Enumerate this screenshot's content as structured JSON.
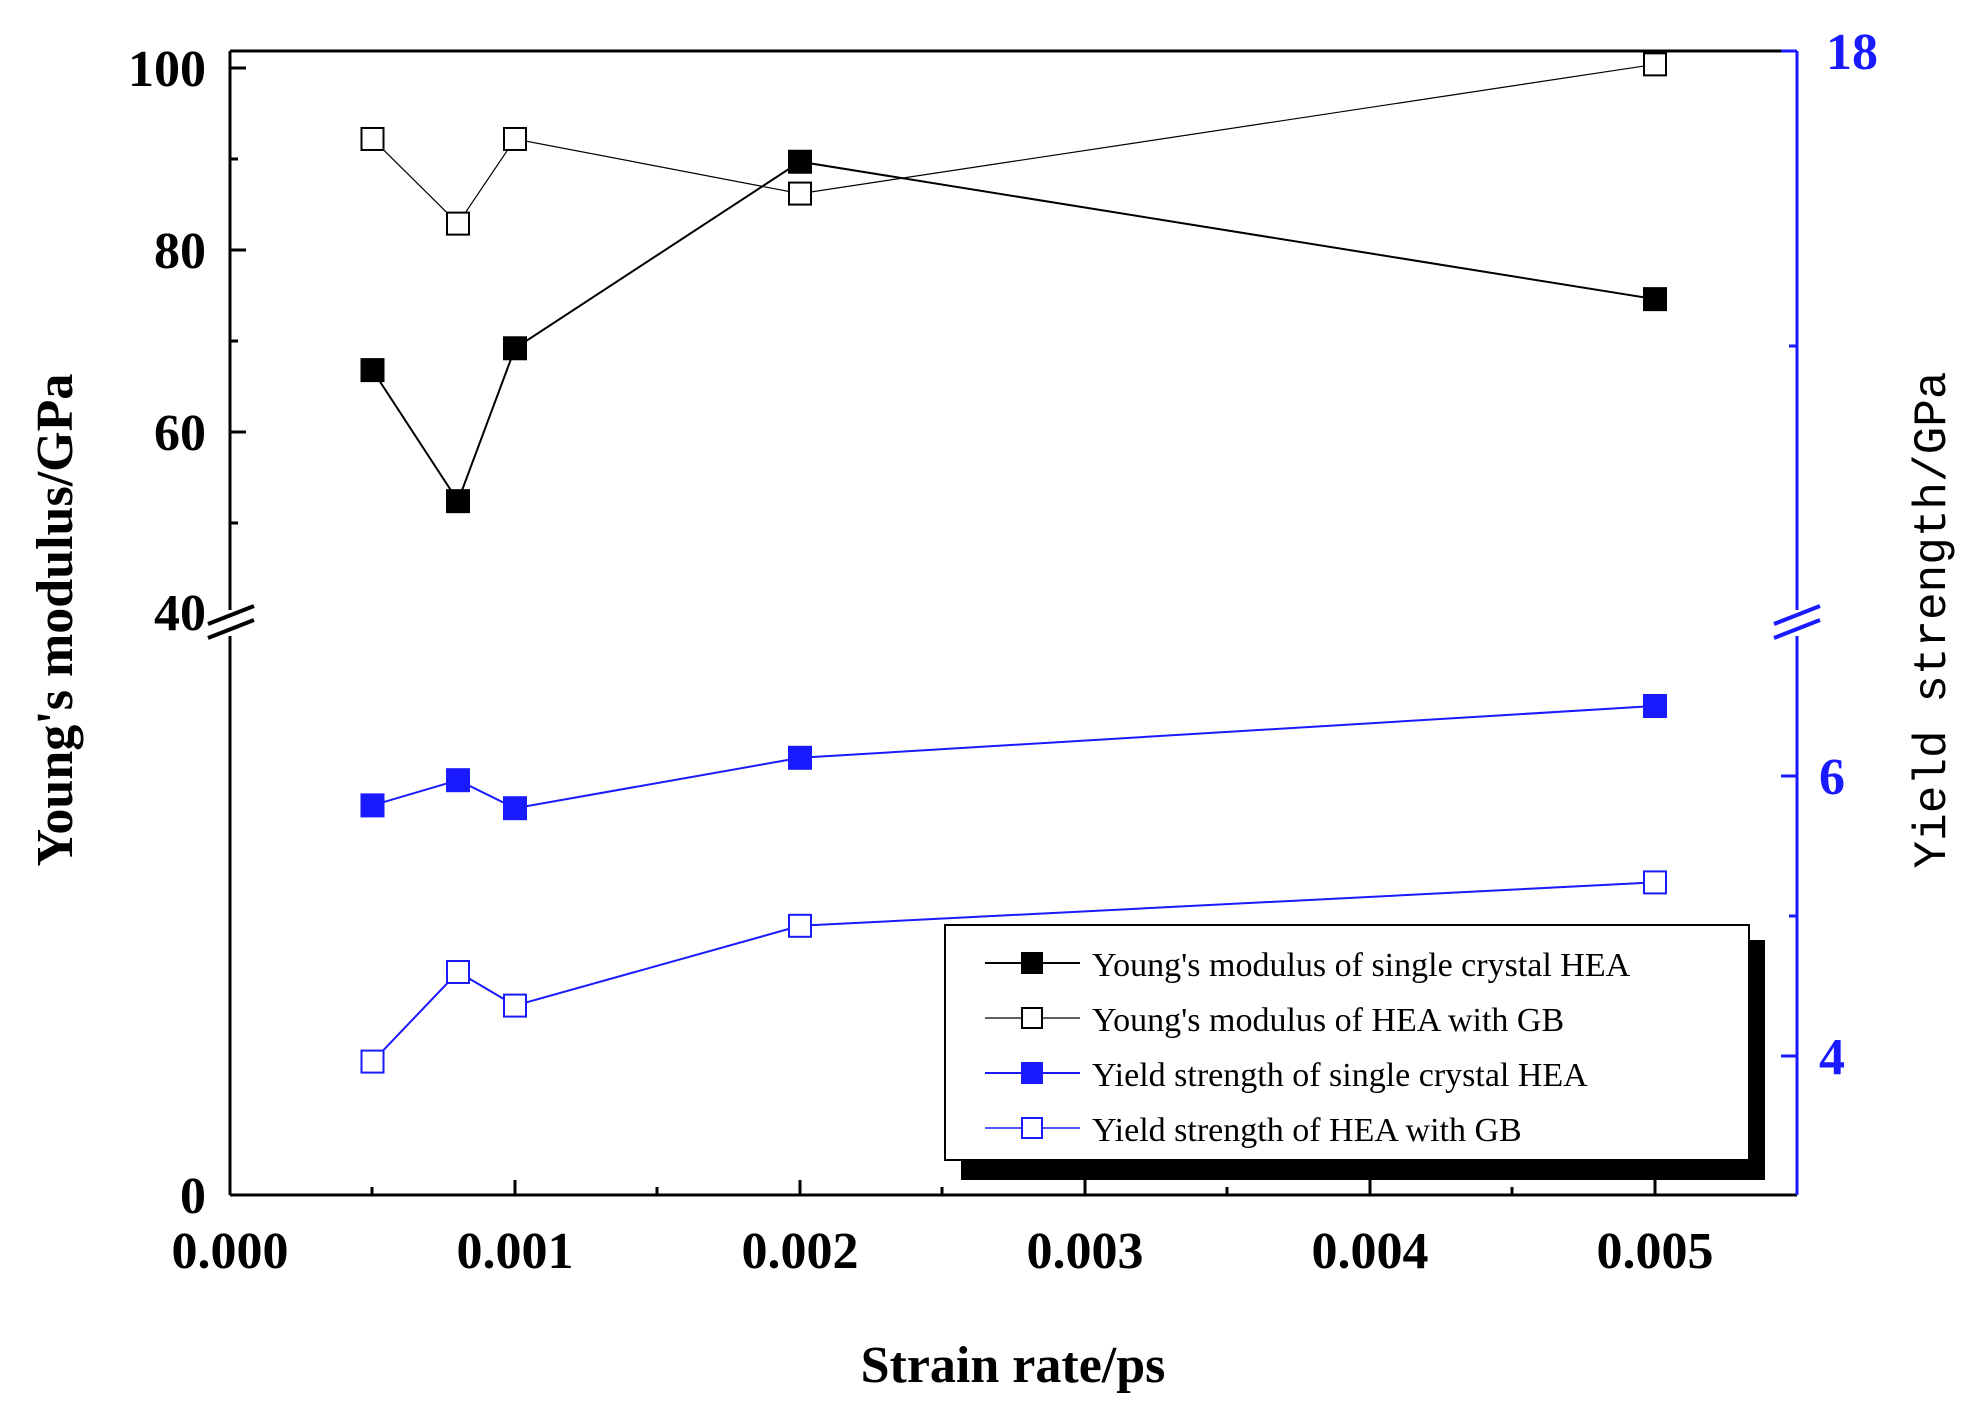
{
  "chart_data": {
    "type": "line",
    "title": "",
    "xlabel": "Strain rate/ps",
    "ylabel": "Young's modulus/GPa",
    "ylabel_right": "Yield strength/GPa",
    "x_ticks": [
      "0.000",
      "0.001",
      "0.002",
      "0.003",
      "0.004",
      "0.005"
    ],
    "xlim": [
      0,
      0.0055
    ],
    "y_left_ticks": [
      "0",
      "40",
      "60",
      "80",
      "100"
    ],
    "y_right_ticks": [
      "4",
      "6",
      "18"
    ],
    "axis_break": true,
    "legend_position": "bottom-right",
    "colors": {
      "black": "#000000",
      "blue": "#1a1aff"
    },
    "series": [
      {
        "name": "Young's modulus of single crystal HEA",
        "axis": "left",
        "marker": "filled-square",
        "color": "#000000",
        "x": [
          0.0005,
          0.0008,
          0.001,
          0.002,
          0.005
        ],
        "values": [
          66.8,
          52.4,
          69.2,
          89.7,
          74.6
        ]
      },
      {
        "name": "Young's modulus of HEA with GB",
        "axis": "left",
        "marker": "open-square",
        "color": "#000000",
        "x": [
          0.0005,
          0.0008,
          0.001,
          0.002,
          0.005
        ],
        "values": [
          92.2,
          82.9,
          92.2,
          86.2,
          100.4
        ]
      },
      {
        "name": "Yield strength of single crystal HEA",
        "axis": "right",
        "marker": "filled-square",
        "color": "#1a1aff",
        "x": [
          0.0005,
          0.0008,
          0.001,
          0.002,
          0.005
        ],
        "values": [
          5.79,
          5.97,
          5.77,
          6.13,
          6.5
        ]
      },
      {
        "name": "Yield strength of HEA with GB",
        "axis": "right",
        "marker": "open-square",
        "color": "#1a1aff",
        "x": [
          0.0005,
          0.0008,
          0.001,
          0.002,
          0.005
        ],
        "values": [
          3.96,
          4.6,
          4.36,
          4.93,
          5.24
        ]
      }
    ]
  }
}
